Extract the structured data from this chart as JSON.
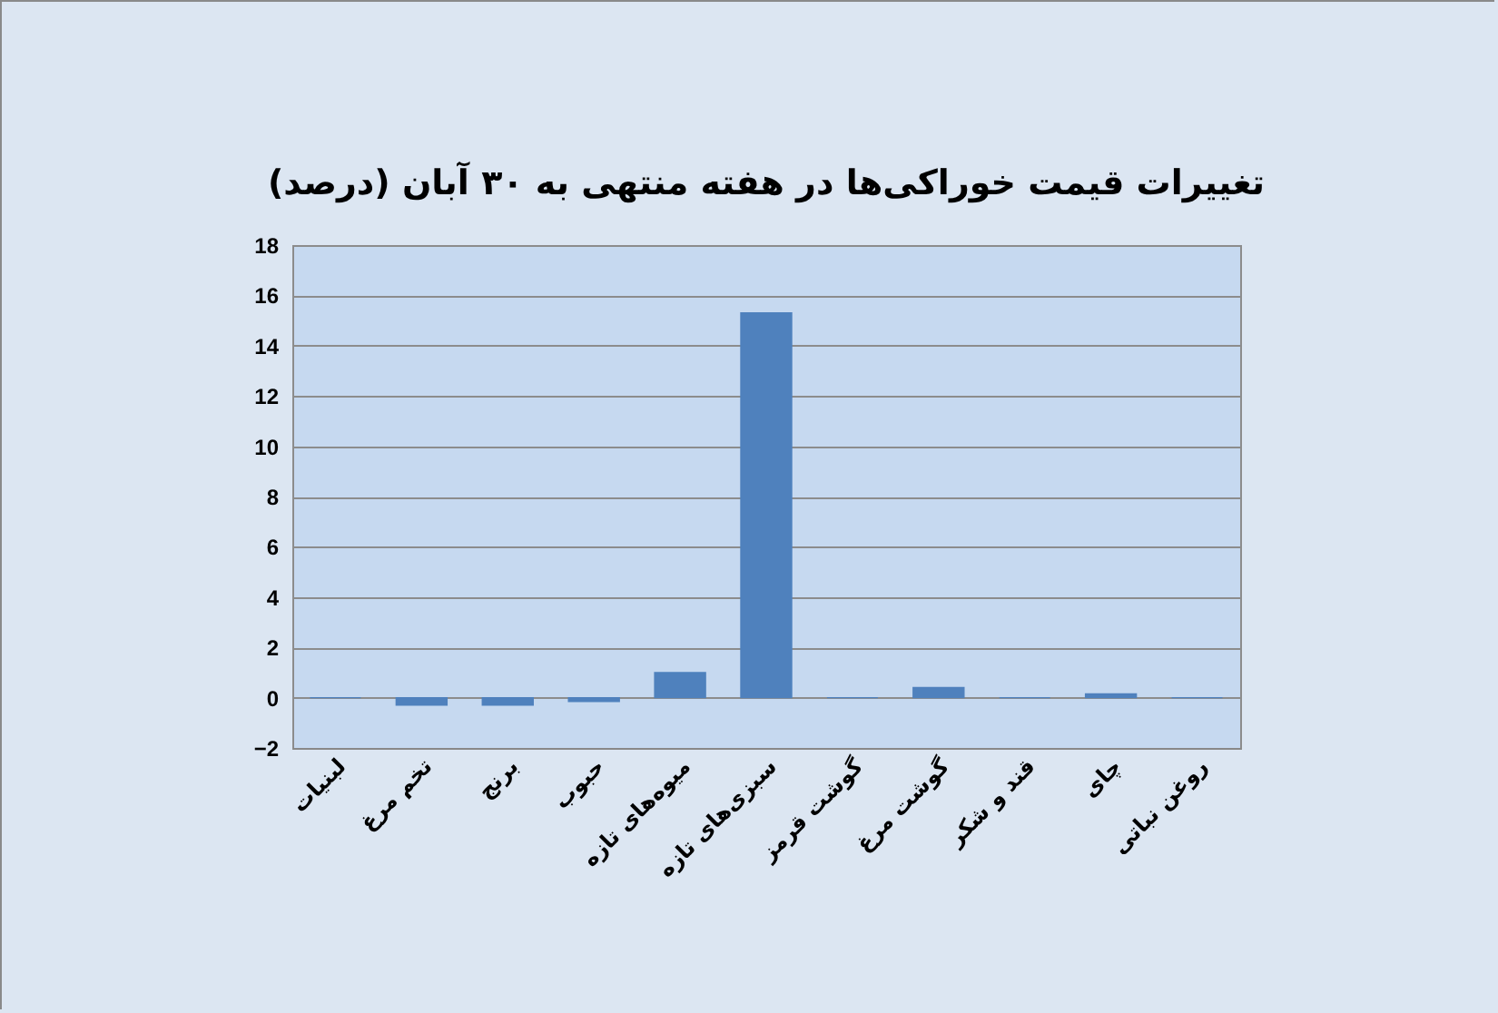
{
  "chart_data": {
    "type": "bar",
    "title": "تغییرات قیمت خوراکی‌ها در هفته منتهی به ۳۰ آبان (درصد)",
    "categories": [
      "لبنیات",
      "تخم مرغ",
      "برنج",
      "حبوب",
      "میوه‌های تازه",
      "سبزی‌های تازه",
      "گوشت قرمز",
      "گوشت مرغ",
      "قند و شکر",
      "چای",
      "روغن نباتی"
    ],
    "values": [
      0,
      -0.3,
      -0.3,
      -0.15,
      1.0,
      15.3,
      0,
      0.4,
      0,
      0.15,
      0
    ],
    "color": "#4f81bd",
    "ylim": [
      -2,
      18
    ],
    "yticks": [
      -2,
      0,
      2,
      4,
      6,
      8,
      10,
      12,
      14,
      16,
      18
    ],
    "grid": "y"
  }
}
